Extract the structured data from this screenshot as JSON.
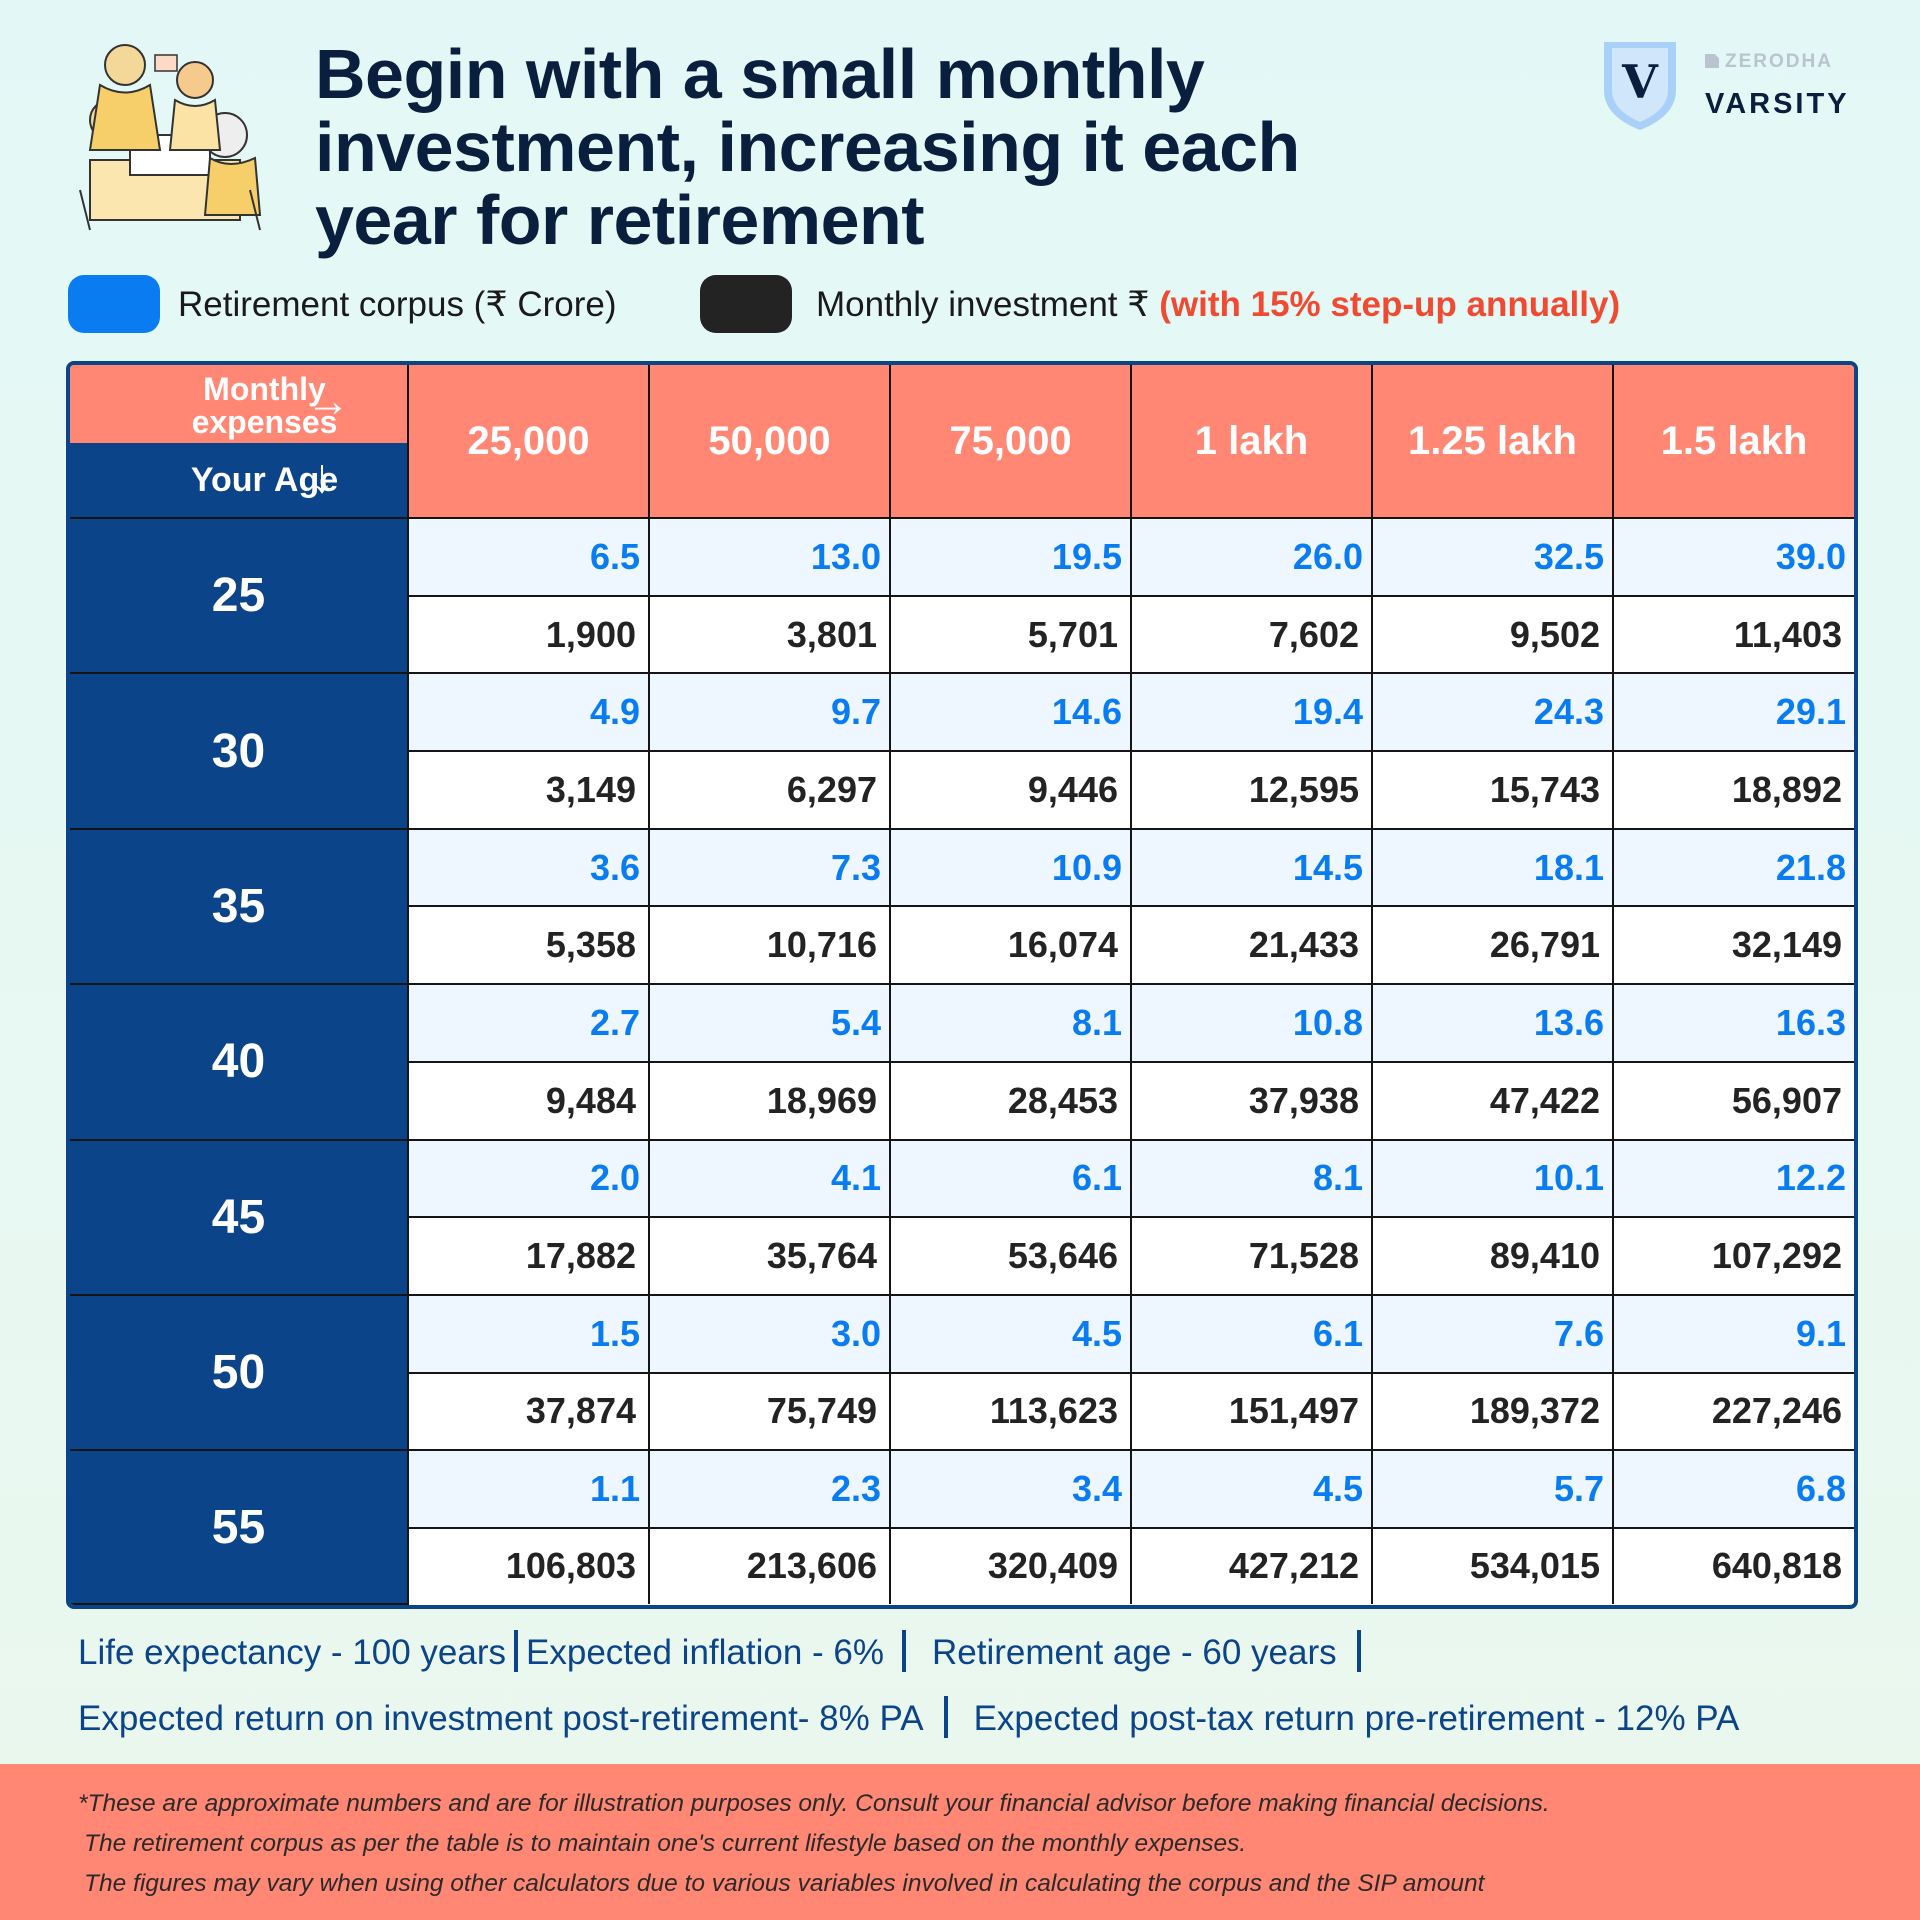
{
  "title": "Begin with a small monthly investment, increasing it each year for retirement",
  "title_lines": [
    "Begin with a small monthly",
    "investment, increasing it each",
    "year for retirement"
  ],
  "brand": {
    "top": "ZERODHA",
    "bottom": "VARSITY",
    "shield_letter": "V"
  },
  "legend": {
    "corpus_label": "Retirement corpus (₹ Crore)",
    "investment_label": "Monthly investment ₹",
    "investment_highlight": "(with 15% step-up annually)",
    "corpus_color": "#0a7cf2",
    "investment_color": "#232323"
  },
  "table": {
    "corner_top": "Monthly expenses",
    "corner_bottom": "Your Age",
    "columns": [
      "25,000",
      "50,000",
      "75,000",
      "1 lakh",
      "1.25 lakh",
      "1.5 lakh"
    ],
    "rows": [
      {
        "age": "25",
        "corpus": [
          "6.5",
          "13.0",
          "19.5",
          "26.0",
          "32.5",
          "39.0"
        ],
        "investment": [
          "1,900",
          "3,801",
          "5,701",
          "7,602",
          "9,502",
          "11,403"
        ]
      },
      {
        "age": "30",
        "corpus": [
          "4.9",
          "9.7",
          "14.6",
          "19.4",
          "24.3",
          "29.1"
        ],
        "investment": [
          "3,149",
          "6,297",
          "9,446",
          "12,595",
          "15,743",
          "18,892"
        ]
      },
      {
        "age": "35",
        "corpus": [
          "3.6",
          "7.3",
          "10.9",
          "14.5",
          "18.1",
          "21.8"
        ],
        "investment": [
          "5,358",
          "10,716",
          "16,074",
          "21,433",
          "26,791",
          "32,149"
        ]
      },
      {
        "age": "40",
        "corpus": [
          "2.7",
          "5.4",
          "8.1",
          "10.8",
          "13.6",
          "16.3"
        ],
        "investment": [
          "9,484",
          "18,969",
          "28,453",
          "37,938",
          "47,422",
          "56,907"
        ]
      },
      {
        "age": "45",
        "corpus": [
          "2.0",
          "4.1",
          "6.1",
          "8.1",
          "10.1",
          "12.2"
        ],
        "investment": [
          "17,882",
          "35,764",
          "53,646",
          "71,528",
          "89,410",
          "107,292"
        ]
      },
      {
        "age": "50",
        "corpus": [
          "1.5",
          "3.0",
          "4.5",
          "6.1",
          "7.6",
          "9.1"
        ],
        "investment": [
          "37,874",
          "75,749",
          "113,623",
          "151,497",
          "189,372",
          "227,246"
        ]
      },
      {
        "age": "55",
        "corpus": [
          "1.1",
          "2.3",
          "3.4",
          "4.5",
          "5.7",
          "6.8"
        ],
        "investment": [
          "106,803",
          "213,606",
          "320,409",
          "427,212",
          "534,015",
          "640,818"
        ]
      }
    ]
  },
  "assumptions": {
    "life_expectancy": "Life expectancy - 100 years",
    "inflation": "Expected inflation - 6%",
    "retirement_age": "Retirement age - 60 years",
    "post_retirement_return": "Expected return on investment post-retirement- 8% PA",
    "pre_retirement_return": "Expected post-tax return pre-retirement - 12% PA"
  },
  "footer": [
    "*These are approximate numbers and are for illustration purposes only. Consult your financial advisor before making financial decisions.",
    "The retirement corpus as per the table is to maintain one's current lifestyle based on the monthly expenses.",
    "The figures may vary when using other calculators due to various variables involved in calculating the corpus and the SIP amount"
  ],
  "colors": {
    "navy": "#0c4489",
    "salmon": "#ff8774",
    "corpus_blue": "#0a7cf2",
    "highlight_red": "#f04a32"
  }
}
